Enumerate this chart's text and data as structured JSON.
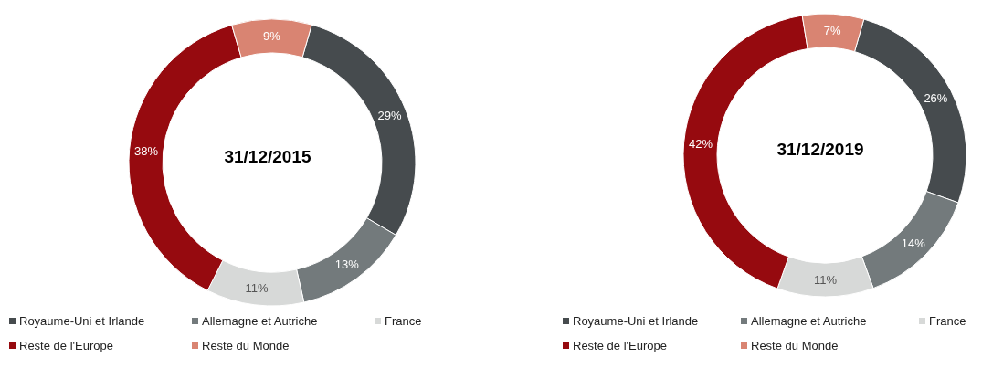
{
  "chart_data": [
    {
      "type": "donut",
      "title": "31/12/2015",
      "categories": [
        "Royaume-Uni et Irlande",
        "Allemagne et Autriche",
        "France",
        "Reste de l'Europe",
        "Reste du Monde"
      ],
      "values": [
        29,
        13,
        11,
        38,
        9
      ],
      "colors": [
        "#464b4e",
        "#737a7c",
        "#d7d9d8",
        "#960a0f",
        "#d98472"
      ],
      "value_labels": [
        "29%",
        "13%",
        "11%",
        "38%",
        "9%"
      ],
      "legend": "bottom"
    },
    {
      "type": "donut",
      "title": "31/12/2019",
      "categories": [
        "Royaume-Uni et Irlande",
        "Allemagne et Autriche",
        "France",
        "Reste de l'Europe",
        "Reste du Monde"
      ],
      "values": [
        26,
        14,
        11,
        42,
        7
      ],
      "colors": [
        "#464b4e",
        "#737a7c",
        "#d7d9d8",
        "#960a0f",
        "#d98472"
      ],
      "value_labels": [
        "26%",
        "14%",
        "11%",
        "42%",
        "7%"
      ],
      "legend": "bottom"
    }
  ]
}
